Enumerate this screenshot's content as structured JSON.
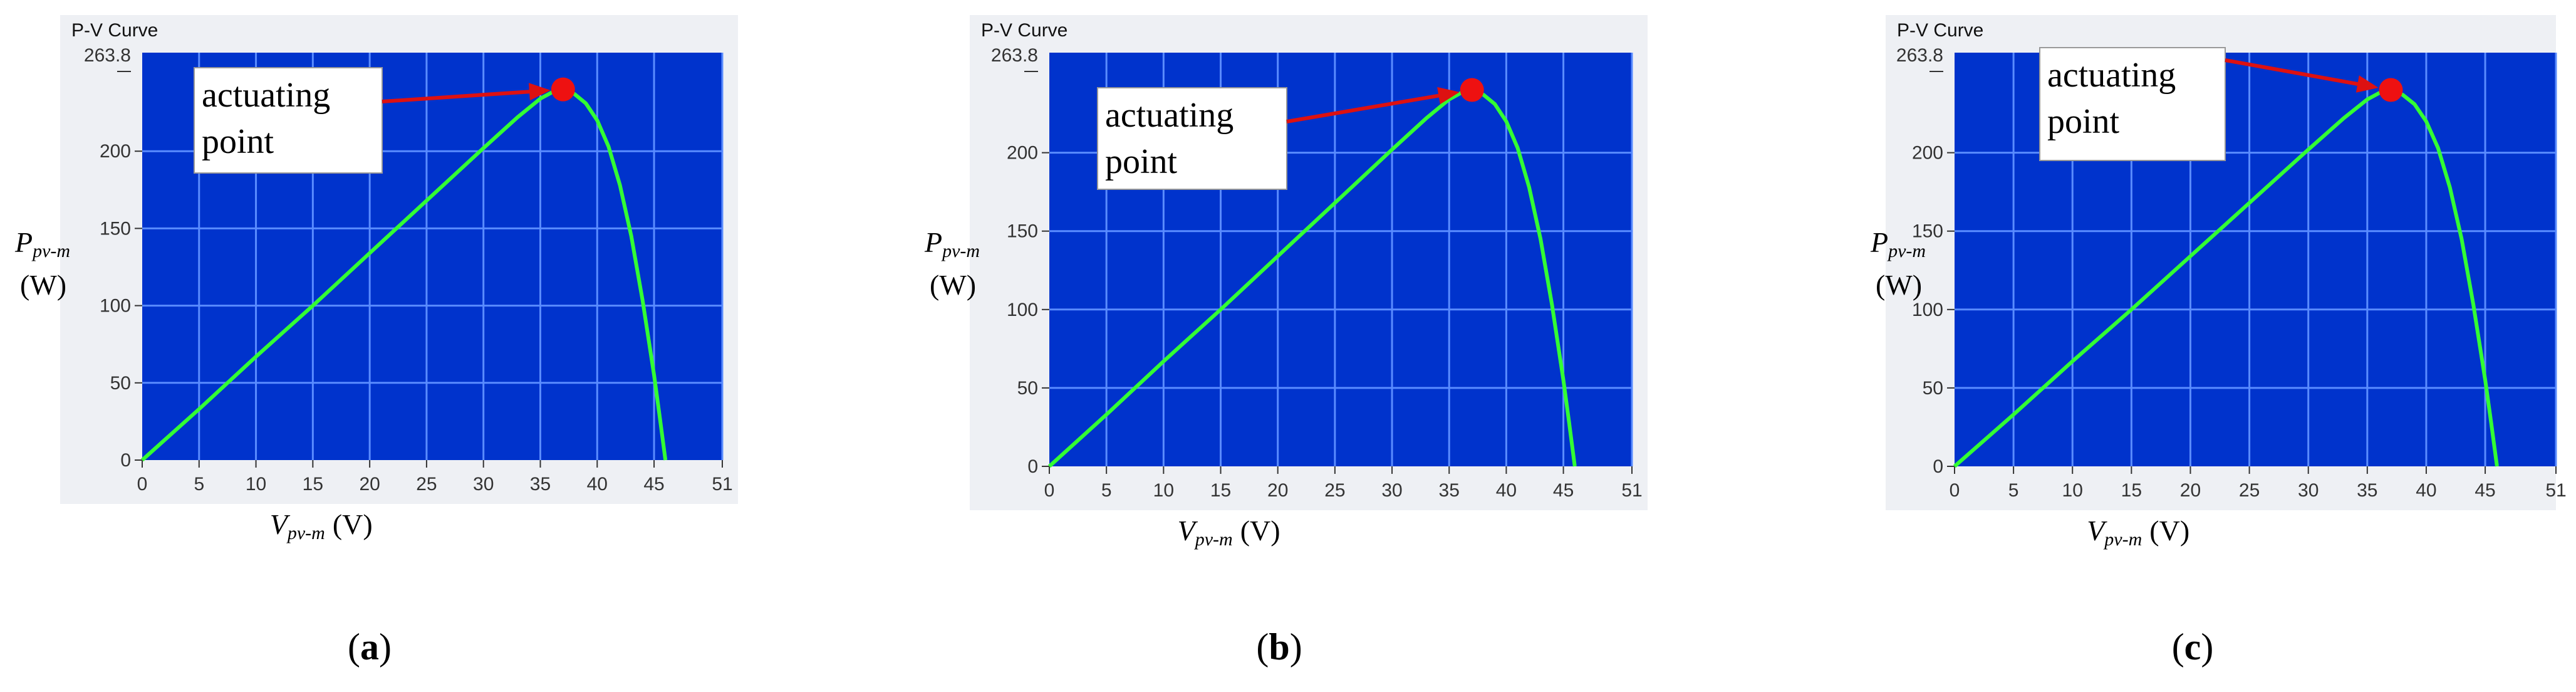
{
  "panels": [
    {
      "window_title": "P-V Curve",
      "top_value_label": "263.8",
      "annotation": [
        "actuating",
        "point"
      ],
      "ylabel_main": "P",
      "ylabel_sub": "pv-m",
      "ylabel_unit": "(W)",
      "xlabel_main": "V",
      "xlabel_sub": "pv-m",
      "xlabel_unit": "(V)",
      "caption_letter": "a"
    },
    {
      "window_title": "P-V Curve",
      "top_value_label": "263.8",
      "annotation": [
        "actuating",
        "point"
      ],
      "ylabel_main": "P",
      "ylabel_sub": "pv-m",
      "ylabel_unit": "(W)",
      "xlabel_main": "V",
      "xlabel_sub": "pv-m",
      "xlabel_unit": "(V)",
      "caption_letter": "b"
    },
    {
      "window_title": "P-V Curve",
      "top_value_label": "263.8",
      "annotation": [
        "actuating",
        "point"
      ],
      "ylabel_main": "P",
      "ylabel_sub": "pv-m",
      "ylabel_unit": "(W)",
      "xlabel_main": "V",
      "xlabel_sub": "pv-m",
      "xlabel_unit": "(V)",
      "caption_letter": "c"
    }
  ],
  "colors": {
    "plot_bg": "#0033cc",
    "grid": "#5a8cff",
    "curve": "#33ff33",
    "marker": "#ee1111",
    "arrow": "#dd1111",
    "frame_bg": "#eef0f4"
  },
  "chart_data": [
    {
      "type": "line",
      "title": "P-V Curve",
      "xlabel": "Vpv-m (V)",
      "ylabel": "Ppv-m (W)",
      "xlim": [
        0,
        51
      ],
      "ylim": [
        0,
        263.8
      ],
      "x_ticks": [
        0,
        5,
        10,
        15,
        20,
        25,
        30,
        35,
        40,
        45,
        51
      ],
      "y_ticks": [
        0,
        50,
        100,
        150,
        200
      ],
      "grid": true,
      "series": [
        {
          "x": [
            0,
            5,
            10,
            15,
            20,
            25,
            30,
            33,
            35,
            36,
            37,
            38,
            39,
            40,
            41,
            42,
            43,
            44,
            45,
            45.5,
            46
          ],
          "values": [
            0,
            33,
            67,
            100,
            134,
            168,
            202,
            222,
            234,
            238,
            240,
            237,
            231,
            220,
            203,
            178,
            145,
            103,
            55,
            28,
            0
          ]
        }
      ],
      "actuating_point": {
        "x": 37,
        "y": 240
      }
    },
    {
      "type": "line",
      "title": "P-V Curve",
      "xlabel": "Vpv-m (V)",
      "ylabel": "Ppv-m (W)",
      "xlim": [
        0,
        51
      ],
      "ylim": [
        0,
        263.8
      ],
      "x_ticks": [
        0,
        5,
        10,
        15,
        20,
        25,
        30,
        35,
        40,
        45,
        51
      ],
      "y_ticks": [
        0,
        50,
        100,
        150,
        200
      ],
      "grid": true,
      "series": [
        {
          "x": [
            0,
            5,
            10,
            15,
            20,
            25,
            30,
            33,
            35,
            36,
            37,
            38,
            39,
            40,
            41,
            42,
            43,
            44,
            45,
            45.5,
            46
          ],
          "values": [
            0,
            33,
            67,
            100,
            134,
            168,
            202,
            222,
            234,
            238,
            240,
            237,
            231,
            220,
            203,
            178,
            145,
            103,
            55,
            28,
            0
          ]
        }
      ],
      "actuating_point": {
        "x": 37,
        "y": 240
      }
    },
    {
      "type": "line",
      "title": "P-V Curve",
      "xlabel": "Vpv-m (V)",
      "ylabel": "Ppv-m (W)",
      "xlim": [
        0,
        51
      ],
      "ylim": [
        0,
        263.8
      ],
      "x_ticks": [
        0,
        5,
        10,
        15,
        20,
        25,
        30,
        35,
        40,
        45,
        51
      ],
      "y_ticks": [
        0,
        50,
        100,
        150,
        200
      ],
      "grid": true,
      "series": [
        {
          "x": [
            0,
            5,
            10,
            15,
            20,
            25,
            30,
            33,
            35,
            36,
            37,
            38,
            39,
            40,
            41,
            42,
            43,
            44,
            45,
            45.5,
            46
          ],
          "values": [
            0,
            33,
            67,
            100,
            134,
            168,
            202,
            222,
            234,
            238,
            240,
            237,
            231,
            220,
            203,
            178,
            145,
            103,
            55,
            28,
            0
          ]
        }
      ],
      "actuating_point": {
        "x": 37,
        "y": 240
      }
    }
  ]
}
